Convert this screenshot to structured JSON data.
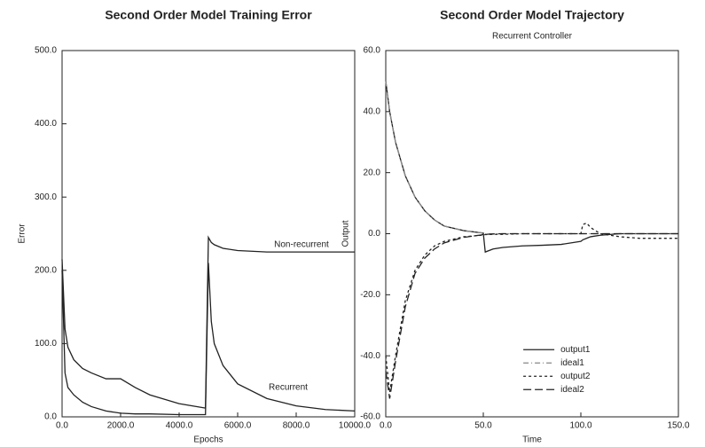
{
  "chart_data": [
    {
      "type": "line",
      "title": "Second Order Model Training Error",
      "x_label": "Epochs",
      "y_label": "Error",
      "x": [
        0,
        100,
        200,
        400,
        700,
        1000,
        1500,
        2000,
        2500,
        3000,
        4000,
        4900,
        5000,
        5100,
        5200,
        5500,
        6000,
        7000,
        8000,
        9000,
        10000
      ],
      "series": [
        {
          "name": "Non-recurrent",
          "color": "#222222",
          "dash": "none",
          "values": [
            215,
            120,
            95,
            78,
            66,
            60,
            52,
            52,
            40,
            30,
            18,
            12,
            245,
            238,
            235,
            230,
            227,
            225,
            225,
            225,
            225
          ]
        },
        {
          "name": "Recurrent",
          "color": "#222222",
          "dash": "none",
          "values": [
            200,
            60,
            40,
            30,
            20,
            14,
            8,
            5,
            4,
            4,
            3,
            3,
            210,
            130,
            100,
            70,
            45,
            25,
            15,
            10,
            8
          ]
        }
      ],
      "xlim": [
        0,
        10000
      ],
      "xticks": [
        {
          "value": 0,
          "label": "0.0"
        },
        {
          "value": 2000,
          "label": "2000.0"
        },
        {
          "value": 4000,
          "label": "4000.0"
        },
        {
          "value": 6000,
          "label": "6000.0"
        },
        {
          "value": 8000,
          "label": "8000.0"
        },
        {
          "value": 10000,
          "label": "10000.0"
        }
      ],
      "ylim": [
        0,
        500
      ],
      "yticks": [
        {
          "value": 0,
          "label": "0.0"
        },
        {
          "value": 100,
          "label": "100.0"
        },
        {
          "value": 200,
          "label": "200.0"
        },
        {
          "value": 300,
          "label": "300.0"
        },
        {
          "value": 400,
          "label": "400.0"
        },
        {
          "value": 500,
          "label": "500.0"
        }
      ],
      "legend": "inline"
    },
    {
      "type": "line",
      "title": "Second Order Model Trajectory",
      "subtitle": "Recurrent Controller",
      "x_label": "Time",
      "y_label": "Output",
      "x": [
        0,
        2,
        5,
        10,
        15,
        20,
        25,
        30,
        40,
        49,
        50,
        51,
        55,
        60,
        70,
        80,
        90,
        100,
        101,
        103,
        105,
        110,
        120,
        130,
        140,
        150
      ],
      "series": [
        {
          "name": "output1",
          "color": "#222222",
          "dash": "none",
          "values": [
            50,
            40,
            30,
            19,
            12,
            7.5,
            4.5,
            2.5,
            1,
            0.3,
            0.2,
            -6,
            -5,
            -4.5,
            -4,
            -3.8,
            -3.5,
            -2.5,
            -2,
            -1.5,
            -1,
            -0.5,
            0,
            0,
            0,
            0
          ]
        },
        {
          "name": "ideal1",
          "color": "#888888",
          "dash": "6 3 1 3",
          "values": [
            50,
            40,
            30,
            19,
            12,
            7.5,
            4.5,
            2.5,
            1,
            0.3,
            0,
            0,
            0,
            0,
            0,
            0,
            0,
            0,
            0,
            0,
            0,
            0,
            0,
            0,
            0,
            0
          ]
        },
        {
          "name": "output2",
          "color": "#222222",
          "dash": "3 3",
          "values": [
            -40,
            -52,
            -40,
            -22,
            -12,
            -7,
            -4,
            -2.5,
            -1,
            -0.5,
            -0.4,
            -0.3,
            -0.2,
            -0.2,
            0,
            0,
            0,
            0,
            3,
            3.5,
            2,
            0,
            -1,
            -1.5,
            -1.5,
            -1.5
          ]
        },
        {
          "name": "ideal2",
          "color": "#222222",
          "dash": "9 4",
          "values": [
            -45,
            -54,
            -42,
            -24,
            -13,
            -8,
            -5,
            -3,
            -1.2,
            -0.4,
            -0.2,
            -0.2,
            -0.1,
            0,
            0,
            0,
            0,
            0,
            0,
            0,
            0,
            0,
            0,
            0,
            0,
            0
          ]
        }
      ],
      "xlim": [
        0,
        150
      ],
      "xticks": [
        {
          "value": 0,
          "label": "0.0"
        },
        {
          "value": 50,
          "label": "50.0"
        },
        {
          "value": 100,
          "label": "100.0"
        },
        {
          "value": 150,
          "label": "150.0"
        }
      ],
      "ylim": [
        -60,
        60
      ],
      "yticks": [
        {
          "value": -60,
          "label": "-60.0"
        },
        {
          "value": -40,
          "label": "-40.0"
        },
        {
          "value": -20,
          "label": "-20.0"
        },
        {
          "value": 0,
          "label": "0.0"
        },
        {
          "value": 20,
          "label": "20.0"
        },
        {
          "value": 40,
          "label": "40.0"
        },
        {
          "value": 60,
          "label": "60.0"
        }
      ],
      "legend": "lower center"
    }
  ]
}
